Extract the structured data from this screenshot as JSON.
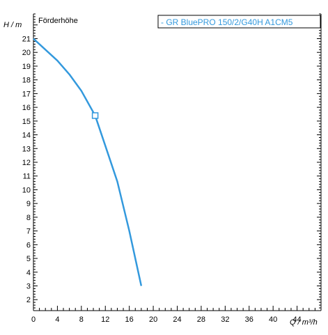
{
  "chart_data": {
    "type": "line",
    "title": "Förderhöhe",
    "ylabel": "H / m",
    "xlabel": "Q / m³/h",
    "xlim": [
      0,
      48
    ],
    "ylim": [
      1.2,
      22.8
    ],
    "x_ticks": [
      0,
      4,
      8,
      12,
      16,
      20,
      24,
      28,
      32,
      36,
      40,
      44
    ],
    "y_ticks": [
      2,
      3,
      4,
      5,
      6,
      7,
      8,
      9,
      10,
      11,
      12,
      13,
      14,
      15,
      16,
      17,
      18,
      19,
      20,
      21
    ],
    "grid": false,
    "legend": "top-right",
    "colors": {
      "series": "#3399dd",
      "axis": "#000000"
    },
    "series": [
      {
        "name": "- GR BluePRO 150/2/G40H A1CM5",
        "x": [
          0,
          2,
          4,
          6,
          8,
          10.3,
          12,
          14,
          16,
          18
        ],
        "y": [
          21,
          20.2,
          19.4,
          18.4,
          17.2,
          15.4,
          13.2,
          10.6,
          7.0,
          3.0
        ]
      }
    ],
    "operating_point": {
      "x": 10.3,
      "y": 15.4
    }
  }
}
